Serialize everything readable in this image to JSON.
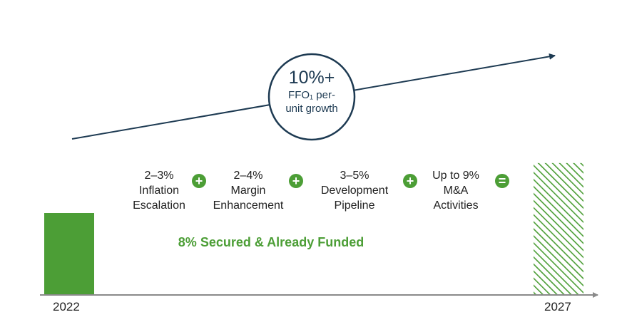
{
  "colors": {
    "navy": "#1d3a52",
    "green": "#4c9e36",
    "axis": "#8a8a8a",
    "text": "#222222"
  },
  "chart_data": {
    "type": "bar",
    "categories": [
      "2022",
      "2027"
    ],
    "series": [
      {
        "values": [
          1.0,
          1.61
        ]
      }
    ],
    "trend": {
      "headline": "10%+",
      "sub_line1": "FFO₁ per-",
      "sub_line2": "unit growth"
    },
    "components": [
      {
        "line1": "2–3%",
        "line2": "Inflation",
        "line3": "Escalation",
        "operator": "+"
      },
      {
        "line1": "2–4%",
        "line2": "Margin",
        "line3": "Enhancement",
        "operator": "+"
      },
      {
        "line1": "3–5%",
        "line2": "Development",
        "line3": "Pipeline",
        "operator": "+"
      },
      {
        "line1": "Up to 9%",
        "line2": "M&A",
        "line3": "Activities",
        "operator": "="
      }
    ],
    "note": "8% Secured & Already Funded",
    "grid": false,
    "legend": "none"
  }
}
